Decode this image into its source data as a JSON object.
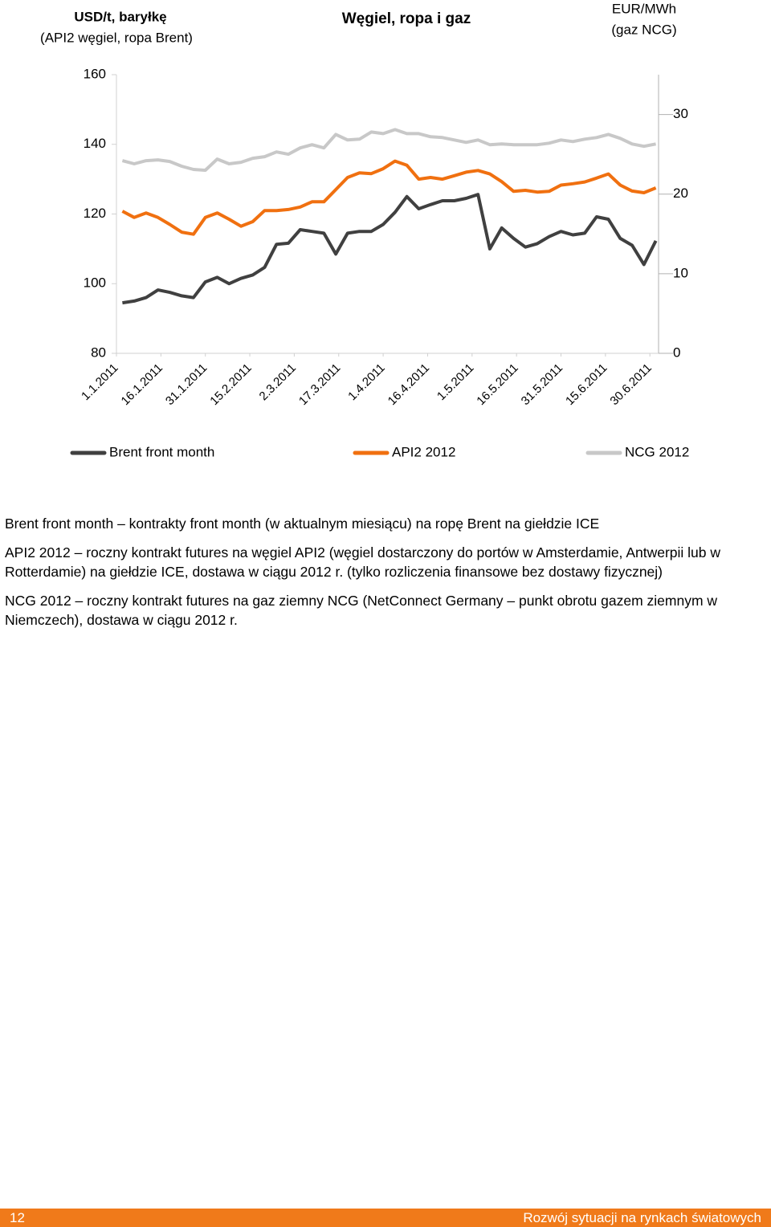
{
  "chart_data": {
    "type": "line",
    "title": "Węgiel, ropa i gaz",
    "ylabel": [
      "USD/t, baryłkę",
      "(API2 węgiel, ropa Brent)"
    ],
    "y2label": [
      "EUR/MWh",
      "(gaz NCG)"
    ],
    "x": [
      "3.1.2011",
      "7.1.2011",
      "11.1.2011",
      "15.1.2011",
      "19.1.2011",
      "23.1.2011",
      "27.1.2011",
      "31.1.2011",
      "4.2.2011",
      "8.2.2011",
      "12.2.2011",
      "16.2.2011",
      "20.2.2011",
      "24.2.2011",
      "28.2.2011",
      "4.3.2011",
      "8.3.2011",
      "12.3.2011",
      "16.3.2011",
      "20.3.2011",
      "24.3.2011",
      "28.3.2011",
      "1.4.2011",
      "5.4.2011",
      "9.4.2011",
      "13.4.2011",
      "17.4.2011",
      "21.4.2011",
      "25.4.2011",
      "29.4.2011",
      "3.5.2011",
      "7.5.2011",
      "11.5.2011",
      "15.5.2011",
      "19.5.2011",
      "23.5.2011",
      "27.5.2011",
      "31.5.2011",
      "4.6.2011",
      "8.6.2011",
      "12.6.2011",
      "16.6.2011",
      "20.6.2011",
      "24.6.2011",
      "28.6.2011",
      "2.7.2011"
    ],
    "xticks": [
      "1.1.2011",
      "16.1.2011",
      "31.1.2011",
      "15.2.2011",
      "2.3.2011",
      "17.3.2011",
      "1.4.2011",
      "16.4.2011",
      "1.5.2011",
      "16.5.2011",
      "31.5.2011",
      "15.6.2011",
      "30.6.2011"
    ],
    "ylim": [
      80,
      160
    ],
    "yticks": [
      80,
      100,
      120,
      140,
      160
    ],
    "y2lim": [
      0,
      35
    ],
    "y2ticks": [
      0,
      10,
      20,
      30
    ],
    "series": [
      {
        "name": "Brent front month",
        "color": "#404040",
        "values": [
          94.5,
          95,
          96,
          98.2,
          97.5,
          96.5,
          96,
          100.5,
          101.8,
          100,
          101.5,
          102.5,
          104.7,
          111.3,
          111.6,
          115.5,
          115,
          114.5,
          108.5,
          114.5,
          115,
          115,
          117,
          120.5,
          125,
          121.5,
          122.7,
          123.8,
          123.8,
          124.5,
          125.6,
          110,
          116,
          113,
          110.5,
          111.5,
          113.5,
          115,
          114,
          114.5,
          119.2,
          118.5,
          113,
          111,
          105.5,
          112.3
        ]
      },
      {
        "name": "API2 2012",
        "color": "#f07010",
        "values": [
          120.8,
          119,
          120.3,
          119,
          117,
          114.8,
          114.2,
          119,
          120.3,
          118.5,
          116.5,
          117.8,
          121,
          121,
          121.3,
          122,
          123.5,
          123.5,
          127,
          130.5,
          131.8,
          131.6,
          133,
          135.2,
          134,
          130,
          130.5,
          130,
          131,
          132,
          132.5,
          131.5,
          129.3,
          126.5,
          126.8,
          126.3,
          126.5,
          128.3,
          128.7,
          129.2,
          130.3,
          131.5,
          128.3,
          126.6,
          126.1,
          127.5
        ]
      },
      {
        "name": "NCG 2012",
        "color": "#c8c8c8",
        "axis": "y2",
        "values": [
          24.2,
          23.8,
          24.2,
          24.3,
          24.1,
          23.5,
          23.1,
          23,
          24.4,
          23.8,
          24,
          24.5,
          24.7,
          25.3,
          25,
          25.8,
          26.2,
          25.8,
          27.5,
          26.8,
          26.9,
          27.8,
          27.6,
          28.1,
          27.6,
          27.6,
          27.2,
          27.1,
          26.8,
          26.5,
          26.8,
          26.2,
          26.3,
          26.2,
          26.2,
          26.2,
          26.4,
          26.8,
          26.6,
          26.9,
          27.1,
          27.5,
          27,
          26.3,
          26,
          26.3
        ]
      }
    ]
  },
  "notes": [
    "Brent front month – kontrakty front month (w aktualnym miesiącu) na ropę Brent na giełdzie ICE",
    "API2 2012 – roczny kontrakt futures na węgiel API2 (węgiel dostarczony do portów w Amsterdamie, Antwerpii lub w Rotterdamie) na giełdzie ICE, dostawa w ciągu 2012 r. (tylko rozliczenia finansowe bez dostawy fizycznej)",
    "NCG 2012 – roczny kontrakt futures na gaz ziemny NCG (NetConnect Germany – punkt obrotu gazem ziemnym w Niemczech), dostawa w ciągu 2012 r."
  ],
  "footer": {
    "page": "12",
    "text": "Rozwój sytuacji na rynkach światowych"
  }
}
